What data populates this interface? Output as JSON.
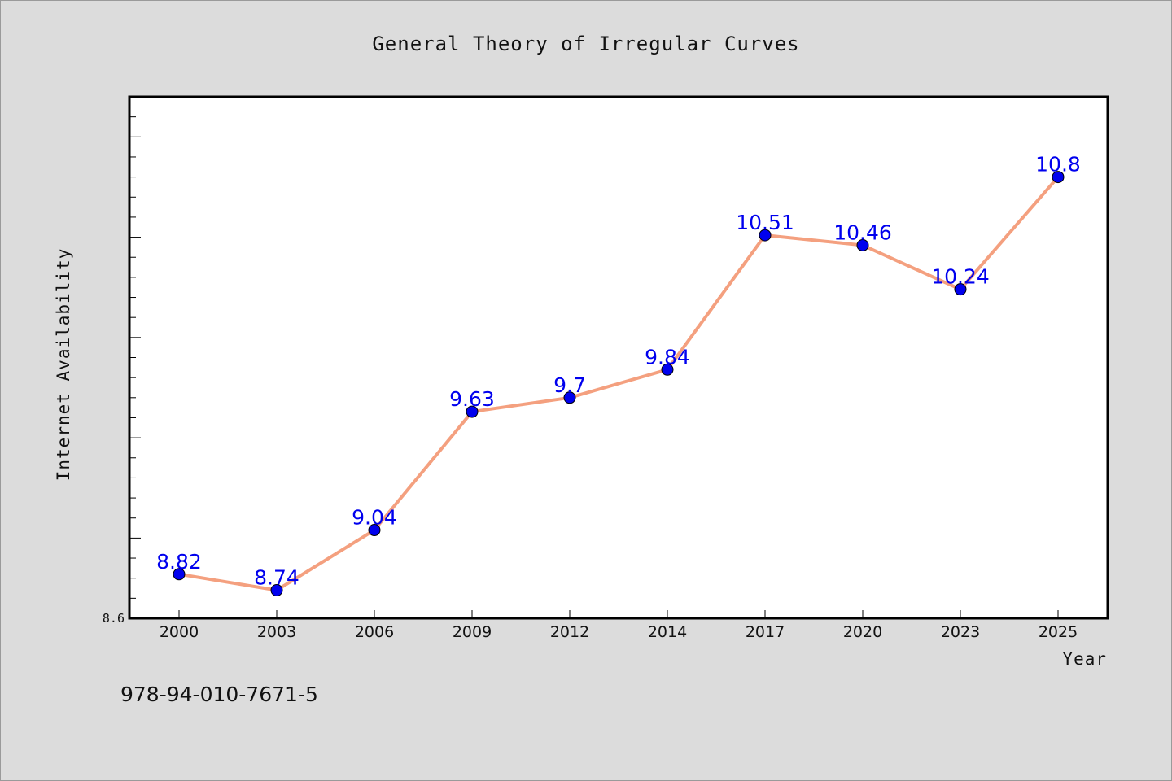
{
  "chart_data": {
    "type": "line",
    "title": "General Theory of Irregular Curves",
    "xlabel": "Year",
    "ylabel": "Internet Availability",
    "categories": [
      "2000",
      "2003",
      "2006",
      "2009",
      "2012",
      "2014",
      "2017",
      "2020",
      "2023",
      "2025"
    ],
    "series": [
      {
        "values": [
          8.82,
          8.74,
          9.04,
          9.63,
          9.7,
          9.84,
          10.51,
          10.46,
          10.24,
          10.8
        ],
        "labels": [
          "8.82",
          "8.74",
          "9.04",
          "9.63",
          "9.7",
          "9.84",
          "10.51",
          "10.46",
          "10.24",
          "10.8"
        ],
        "line_color": "#f4a07f",
        "marker_color": "#0000ee"
      }
    ],
    "ylim": [
      8.6,
      11.2
    ],
    "yticks_labeled": [
      "8.6"
    ],
    "grid": false,
    "legend": "none"
  },
  "footer": {
    "isbn": "978-94-010-7671-5"
  }
}
